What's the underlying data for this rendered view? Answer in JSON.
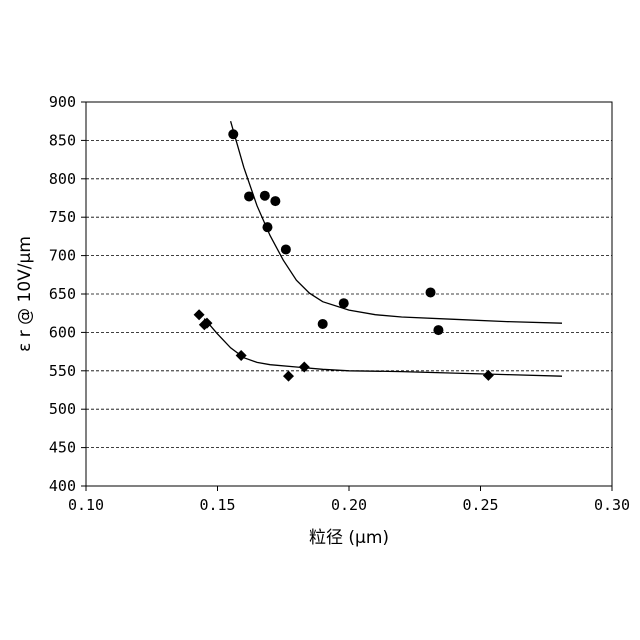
{
  "chart_data": {
    "type": "scatter",
    "xlabel": "粒径 (μm)",
    "ylabel": "ε r @ 10V/μm",
    "xlim": [
      0.1,
      0.3
    ],
    "ylim": [
      400,
      900
    ],
    "x_ticks": [
      "0.10",
      "0.15",
      "0.20",
      "0.25",
      "0.30"
    ],
    "y_ticks": [
      "400",
      "450",
      "500",
      "550",
      "600",
      "650",
      "700",
      "750",
      "800",
      "850",
      "900"
    ],
    "grid": "horizontal-dashed",
    "series": [
      {
        "marker": "circle",
        "points": [
          [
            0.156,
            858
          ],
          [
            0.162,
            777
          ],
          [
            0.168,
            778
          ],
          [
            0.172,
            771
          ],
          [
            0.169,
            737
          ],
          [
            0.176,
            708
          ],
          [
            0.198,
            638
          ],
          [
            0.19,
            611
          ],
          [
            0.231,
            652
          ],
          [
            0.234,
            603
          ]
        ],
        "trend": [
          [
            0.155,
            875
          ],
          [
            0.16,
            815
          ],
          [
            0.165,
            765
          ],
          [
            0.17,
            726
          ],
          [
            0.175,
            694
          ],
          [
            0.18,
            668
          ],
          [
            0.185,
            651
          ],
          [
            0.19,
            640
          ],
          [
            0.2,
            629
          ],
          [
            0.21,
            623
          ],
          [
            0.22,
            620
          ],
          [
            0.24,
            617
          ],
          [
            0.26,
            614
          ],
          [
            0.281,
            612
          ]
        ]
      },
      {
        "marker": "diamond",
        "points": [
          [
            0.143,
            623
          ],
          [
            0.145,
            610
          ],
          [
            0.146,
            612
          ],
          [
            0.159,
            570
          ],
          [
            0.177,
            543
          ],
          [
            0.183,
            555
          ],
          [
            0.253,
            544
          ]
        ],
        "trend": [
          [
            0.145,
            618
          ],
          [
            0.15,
            598
          ],
          [
            0.155,
            580
          ],
          [
            0.16,
            567
          ],
          [
            0.165,
            561
          ],
          [
            0.17,
            558
          ],
          [
            0.18,
            555
          ],
          [
            0.19,
            552
          ],
          [
            0.2,
            550
          ],
          [
            0.22,
            549
          ],
          [
            0.24,
            547
          ],
          [
            0.26,
            545
          ],
          [
            0.281,
            543
          ]
        ]
      }
    ]
  }
}
